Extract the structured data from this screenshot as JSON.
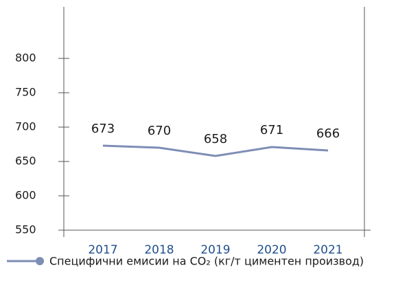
{
  "chart_data": {
    "type": "line",
    "categories": [
      "2017",
      "2018",
      "2019",
      "2020",
      "2021"
    ],
    "series": [
      {
        "name": "Специфични емисии на CO₂ (кг/т циментен производ)",
        "color": "#7d8db5",
        "values": [
          673,
          670,
          658,
          671,
          666
        ]
      }
    ],
    "ylim": [
      550,
      875
    ],
    "yticks": [
      550,
      600,
      650,
      700,
      750,
      800
    ],
    "grid": false,
    "legend": "bottom"
  }
}
